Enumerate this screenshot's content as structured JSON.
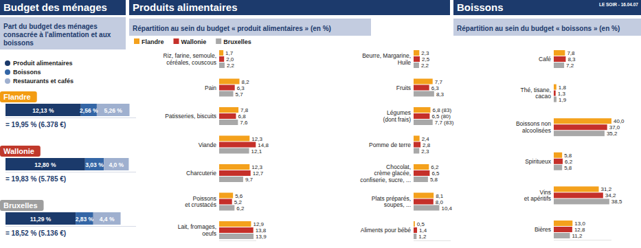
{
  "chart_data": [
    {
      "type": "bar",
      "title": "Budget des ménages",
      "subtitle": "Part du budget des ménages consacrée à l'alimentation et aux boissons",
      "orientation": "horizontal",
      "stacked": true,
      "data_labels": true,
      "legend": "top-left",
      "tick_labels": "y",
      "categories": [
        "Flandre",
        "Wallonie",
        "Bruxelles"
      ],
      "series": [
        {
          "name": "Produit alimentaires",
          "color": "#1b3a6b",
          "values": [
            12.13,
            12.8,
            11.29
          ],
          "value_labels": [
            "12,13 %",
            "12,80 %",
            "11,29 %"
          ]
        },
        {
          "name": "Boissons",
          "color": "#3466a6",
          "values": [
            2.56,
            3.03,
            2.83
          ],
          "value_labels": [
            "2,56 %",
            "3,03 %",
            "2,83 %"
          ]
        },
        {
          "name": "Restaurants et cafés",
          "color": "#9fb0cf",
          "values": [
            5.26,
            4.0,
            4.4
          ],
          "value_labels": [
            "5,26 %",
            "4,0 %",
            "4,4 %"
          ]
        }
      ],
      "annotations": [
        "= 19,95 % (6.378 €)",
        "= 19,83 % (5.785 €)",
        "= 18,52 % (5.136 €)"
      ],
      "xlim": [
        0,
        21
      ]
    },
    {
      "type": "bar",
      "title": "Produits alimentaires",
      "subtitle": "Répartition au sein du budget « produit alimentaires » (en %)",
      "orientation": "horizontal",
      "data_labels": true,
      "legend": "top-left",
      "tick_labels": "y",
      "categories": [
        "Riz, farine, semoule,\ncéréales, couscous",
        "Pain",
        "Patisseries, biscuits",
        "Viande",
        "Charcuterie",
        "Poissons\net crustacés",
        "Lait, fromages,\noeufs",
        "Beurre, Margarine,\nHuile",
        "Fruits",
        "Légumes\n(dont frais)",
        "Pomme de terre",
        "Chocolat,\ncrème glacée,\nconfiserie, sucre, ...",
        "Plats préparés,\nsoupes, ...",
        "Aliments pour bébé"
      ],
      "series": [
        {
          "name": "Flandre",
          "color": "#f4a11c",
          "values": [
            1.7,
            8.2,
            7.8,
            12.3,
            12.3,
            5.6,
            12.9,
            2.3,
            7.7,
            6.8,
            2.4,
            6.2,
            8.1,
            0.5
          ],
          "value_labels": [
            "1,7",
            "8,2",
            "7,8",
            "12,3",
            "12,3",
            "5,6",
            "12,9",
            "2,3",
            "7,7",
            "6,8 (83)",
            "2,4",
            "6,2",
            "8,1",
            "0,5"
          ]
        },
        {
          "name": "Wallonie",
          "color": "#c5302a",
          "values": [
            2.0,
            6.3,
            6.8,
            14.8,
            12.7,
            5.2,
            13.8,
            2.5,
            6.3,
            6.5,
            2.8,
            6.5,
            8.0,
            1.4
          ],
          "value_labels": [
            "2,0",
            "6,3",
            "6,8",
            "14,8",
            "12,7",
            "5,2",
            "13,8",
            "2,5",
            "6,3",
            "6,5 (80)",
            "2,8",
            "6,5",
            "8,0",
            "1,4"
          ]
        },
        {
          "name": "Bruxelles",
          "color": "#a8a8a8",
          "values": [
            2.2,
            5.7,
            7.6,
            12.1,
            9.7,
            6.2,
            13.9,
            2.2,
            8.3,
            7.7,
            2.3,
            5.8,
            10.4,
            1.2
          ],
          "value_labels": [
            "2,2",
            "5,7",
            "7,6",
            "12,1",
            "9,7",
            "6,2",
            "13,9",
            "2,2",
            "8,3",
            "7,7 (83)",
            "2,3",
            "5,8",
            "10,4",
            "1,2"
          ]
        }
      ],
      "xlim": [
        0,
        15
      ]
    },
    {
      "type": "bar",
      "title": "Boissons",
      "subtitle": "Répartition au sein du budget « boissons » (en %)",
      "orientation": "horizontal",
      "data_labels": true,
      "tick_labels": "y",
      "categories": [
        "Café",
        "Thé, tisane,\ncacao",
        "Boissons non\nalcoolisées",
        "Spiritueux",
        "Vins\net apéritifs",
        "Bières"
      ],
      "series": [
        {
          "color": "#f4a11c",
          "values": [
            7.8,
            1.8,
            40.0,
            5.8,
            31.2,
            13.0
          ],
          "value_labels": [
            "7,8",
            "1,8",
            "40,0",
            "5,8",
            "31,2",
            "13,0"
          ]
        },
        {
          "color": "#c5302a",
          "values": [
            8.3,
            1.3,
            37.0,
            6.2,
            34.2,
            12.8
          ],
          "value_labels": [
            "8,3",
            "1,3",
            "37,0",
            "6,2",
            "34,2",
            "12,8"
          ]
        },
        {
          "color": "#a8a8a8",
          "values": [
            7.2,
            1.9,
            35.2,
            5.8,
            38.5,
            11.2
          ],
          "value_labels": [
            "7,2",
            "1,9",
            "35,2",
            "5,8",
            "38,5",
            "11,2"
          ]
        }
      ],
      "annotations": [
        "LE SOIR - 16.04.07"
      ],
      "xlim": [
        0,
        40
      ]
    }
  ]
}
